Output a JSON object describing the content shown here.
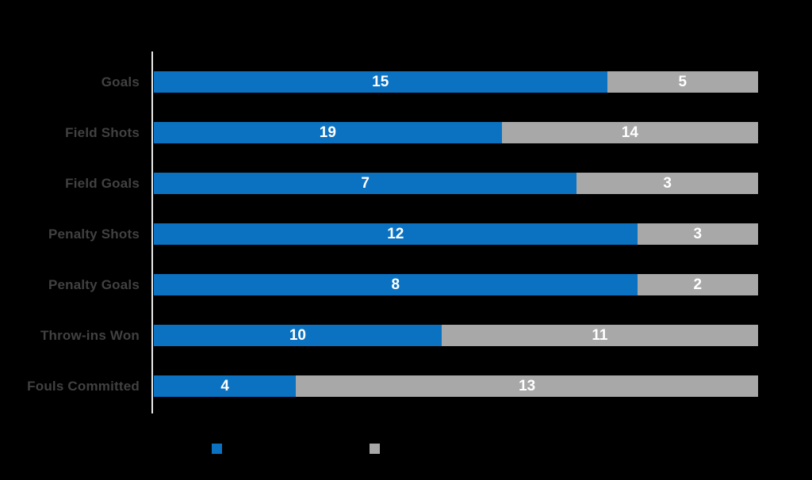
{
  "background_color": "#000000",
  "axis_line_color": "#e9e9e9",
  "category_label_color": "#414141",
  "value_label_color": "#ffffff",
  "chart_data": {
    "type": "bar",
    "orientation": "horizontal",
    "stacked": true,
    "row_normalized": true,
    "title": "",
    "xlabel": "",
    "ylabel": "",
    "grid": false,
    "legend_position": "bottom",
    "legend_labels_visible": false,
    "categories": [
      "Goals",
      "Field Shots",
      "Field Goals",
      "Penalty Shots",
      "Penalty Goals",
      "Throw-ins Won",
      "Fouls Committed"
    ],
    "series": [
      {
        "name": "series-1-blue",
        "color": "#0b72c2",
        "values": [
          15,
          19,
          7,
          12,
          8,
          10,
          4
        ]
      },
      {
        "name": "series-2-gray",
        "color": "#a8a8a8",
        "values": [
          5,
          14,
          3,
          3,
          2,
          11,
          13
        ]
      }
    ]
  }
}
